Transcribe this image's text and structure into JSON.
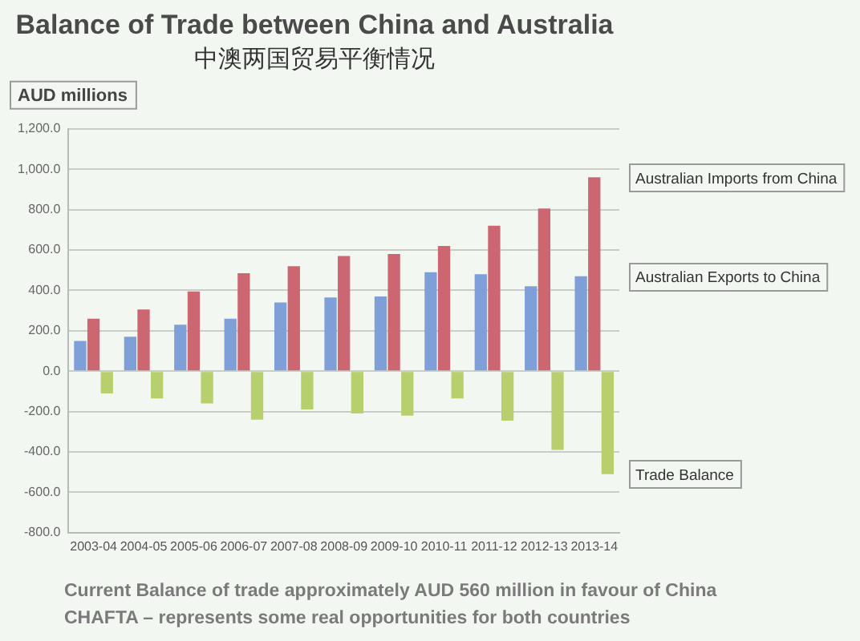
{
  "chart_data": {
    "type": "bar",
    "title": "Balance of Trade between China and Australia",
    "subtitle": "中澳两国贸易平衡情况",
    "ylabel": "AUD millions",
    "categories": [
      "2003-04",
      "2004-05",
      "2005-06",
      "2006-07",
      "2007-08",
      "2008-09",
      "2009-10",
      "2010-11",
      "2011-12",
      "2012-13",
      "2013-14"
    ],
    "series": [
      {
        "name": "Australian Exports to China",
        "color": "#7f9fd8",
        "values": [
          150,
          170,
          230,
          260,
          340,
          365,
          370,
          490,
          480,
          420,
          470
        ]
      },
      {
        "name": "Australian Imports from China",
        "color": "#cc6670",
        "values": [
          260,
          305,
          395,
          485,
          520,
          570,
          580,
          620,
          720,
          805,
          960
        ]
      },
      {
        "name": "Trade Balance",
        "color": "#b8cf6e",
        "values": [
          -110,
          -135,
          -160,
          -240,
          -190,
          -210,
          -220,
          -135,
          -245,
          -390,
          -510
        ]
      }
    ],
    "ylim": [
      -800,
      1200
    ],
    "yticks": [
      {
        "value": -800,
        "label": "-800.0"
      },
      {
        "value": -600,
        "label": "-600.0"
      },
      {
        "value": -400,
        "label": "-400.0"
      },
      {
        "value": -200,
        "label": "-200.0"
      },
      {
        "value": 0,
        "label": "0.0"
      },
      {
        "value": 200,
        "label": "200.0"
      },
      {
        "value": 400,
        "label": "400.0"
      },
      {
        "value": 600,
        "label": "600.0"
      },
      {
        "value": 800,
        "label": "800.0"
      },
      {
        "value": 1000,
        "label": "1,000.0"
      },
      {
        "value": 1200,
        "label": "1,200.0"
      }
    ],
    "grid": "y",
    "annotations": [
      "Current Balance of trade approximately AUD 560 million in favour of China",
      "CHAFTA – represents some real opportunities for both countries"
    ]
  }
}
